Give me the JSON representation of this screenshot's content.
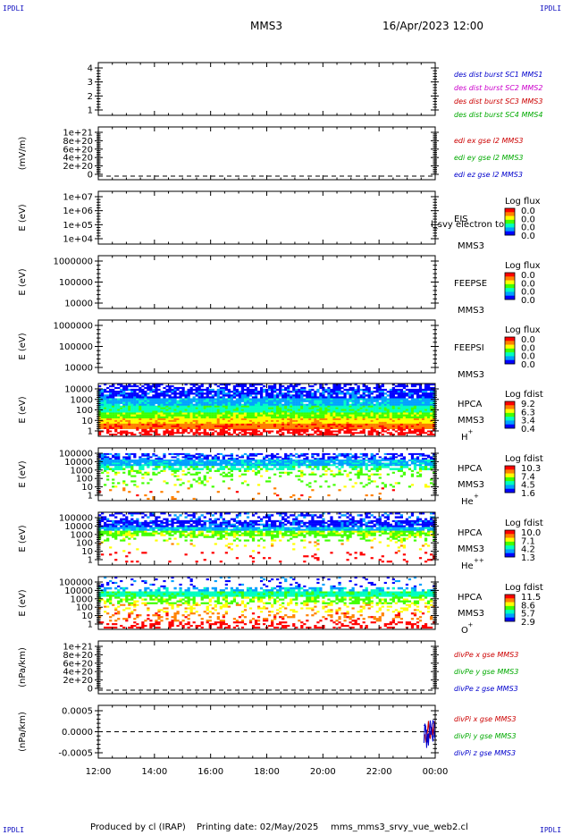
{
  "header": {
    "corner_label": "IPDLI",
    "spacecraft": "MMS3",
    "datetime": "16/Apr/2023 12:00"
  },
  "footer": {
    "produced_by": "Produced by cl (IRAP)",
    "printing_date": "Printing date: 02/May/2025",
    "script_name": "mms_mms3_srvy_vue_web2.cl"
  },
  "colors": {
    "des_sc1": "#0000cc",
    "des_sc2": "#cc00cc",
    "des_sc3": "#cc0000",
    "des_sc4": "#00aa00",
    "x_component": "#cc0000",
    "y_component": "#00aa00",
    "z_component": "#0000cc",
    "colorbar": [
      "#0000ff",
      "#00a0ff",
      "#00ffc0",
      "#40ff00",
      "#ffff00",
      "#ff8000",
      "#ff0000"
    ]
  },
  "chart_data": {
    "type": "heatmap",
    "x_ticks": [
      "12:00",
      "14:00",
      "16:00",
      "18:00",
      "20:00",
      "22:00",
      "00:00"
    ],
    "x_range_hours": [
      12,
      24
    ],
    "panels": [
      {
        "id": "des",
        "type": "line",
        "ylabel": "",
        "yticks": [
          "4",
          "3",
          "2",
          "1"
        ],
        "legend": [
          {
            "label": "des dist burst SC1 MMS1",
            "color": "#0000cc"
          },
          {
            "label": "des dist burst SC2 MMS2",
            "color": "#cc00cc"
          },
          {
            "label": "des dist burst SC3 MMS3",
            "color": "#cc0000"
          },
          {
            "label": "des dist burst SC4 MMS4",
            "color": "#00aa00"
          }
        ]
      },
      {
        "id": "edi",
        "type": "line",
        "ylabel": "(mV/m)",
        "yticks": [
          "1e+21",
          "8e+20",
          "6e+20",
          "4e+20",
          "2e+20",
          "0"
        ],
        "dashed_zero": true,
        "legend": [
          {
            "label": "edi ex gse l2 MMS3",
            "color": "#cc0000"
          },
          {
            "label": "edi ey gse l2 MMS3",
            "color": "#00aa00"
          },
          {
            "label": "edi ez gse l2 MMS3",
            "color": "#0000cc"
          }
        ]
      },
      {
        "id": "eis",
        "type": "heatmap",
        "ylabel": "E (eV)",
        "yticks": [
          "1e+07",
          "1e+06",
          "1e+05",
          "1e+04"
        ],
        "instrument": "EIS",
        "sc": "MMS3",
        "overlay_text": "l_svy electron to",
        "colorbar_title": "Log flux",
        "colorbar_ticks": [
          "0.0",
          "0.0",
          "0.0",
          "0.0"
        ]
      },
      {
        "id": "feepse",
        "type": "heatmap",
        "ylabel": "E (eV)",
        "yticks": [
          "1000000",
          "100000",
          "10000"
        ],
        "instrument": "FEEPSE",
        "sc": "MMS3",
        "colorbar_title": "Log flux",
        "colorbar_ticks": [
          "0.0",
          "0.0",
          "0.0",
          "0.0"
        ]
      },
      {
        "id": "feepsi",
        "type": "heatmap",
        "ylabel": "E (eV)",
        "yticks": [
          "1000000",
          "100000",
          "10000"
        ],
        "instrument": "FEEPSI",
        "sc": "MMS3",
        "colorbar_title": "Log flux",
        "colorbar_ticks": [
          "0.0",
          "0.0",
          "0.0",
          "0.0"
        ]
      },
      {
        "id": "hpca_h",
        "type": "heatmap",
        "ylabel": "E (eV)",
        "yticks": [
          "10000",
          "1000",
          "100",
          "10",
          "1"
        ],
        "instrument": "HPCA",
        "sc": "MMS3",
        "species": "H",
        "charge": "+",
        "colorbar_title": "Log fdist",
        "colorbar_ticks": [
          "9.2",
          "6.3",
          "3.4",
          "0.4"
        ]
      },
      {
        "id": "hpca_he",
        "type": "heatmap",
        "ylabel": "E (eV)",
        "yticks": [
          "100000",
          "10000",
          "1000",
          "100",
          "10",
          "1"
        ],
        "instrument": "HPCA",
        "sc": "MMS3",
        "species": "He",
        "charge": "+",
        "colorbar_title": "Log fdist",
        "colorbar_ticks": [
          "10.3",
          "7.4",
          "4.5",
          "1.6"
        ]
      },
      {
        "id": "hpca_hepp",
        "type": "heatmap",
        "ylabel": "E (eV)",
        "yticks": [
          "100000",
          "10000",
          "1000",
          "100",
          "10",
          "1"
        ],
        "instrument": "HPCA",
        "sc": "MMS3",
        "species": "He",
        "charge": "++",
        "colorbar_title": "Log fdist",
        "colorbar_ticks": [
          "10.0",
          "7.1",
          "4.2",
          "1.3"
        ]
      },
      {
        "id": "hpca_o",
        "type": "heatmap",
        "ylabel": "E (eV)",
        "yticks": [
          "100000",
          "10000",
          "1000",
          "100",
          "10",
          "1"
        ],
        "instrument": "HPCA",
        "sc": "MMS3",
        "species": "O",
        "charge": "+",
        "colorbar_title": "Log fdist",
        "colorbar_ticks": [
          "11.5",
          "8.6",
          "5.7",
          "2.9"
        ]
      },
      {
        "id": "divpe",
        "type": "line",
        "ylabel": "(nPa/km)",
        "yticks": [
          "1e+21",
          "8e+20",
          "6e+20",
          "4e+20",
          "2e+20",
          "0"
        ],
        "dashed_zero": true,
        "legend": [
          {
            "label": "divPe x gse MMS3",
            "color": "#cc0000"
          },
          {
            "label": "divPe y gse MMS3",
            "color": "#00aa00"
          },
          {
            "label": "divPe z gse MMS3",
            "color": "#0000cc"
          }
        ]
      },
      {
        "id": "divpi",
        "type": "line",
        "ylabel": "(nPa/km)",
        "yticks": [
          "0.0005",
          "0.0000",
          "-0.0005"
        ],
        "ylim": [
          -0.0008,
          0.0008
        ],
        "dashed_zero": true,
        "data_start_hour": 23.6,
        "legend": [
          {
            "label": "divPi x gse MMS3",
            "color": "#cc0000"
          },
          {
            "label": "divPi y gse MMS3",
            "color": "#00aa00"
          },
          {
            "label": "divPi z gse MMS3",
            "color": "#0000cc"
          }
        ]
      }
    ]
  }
}
